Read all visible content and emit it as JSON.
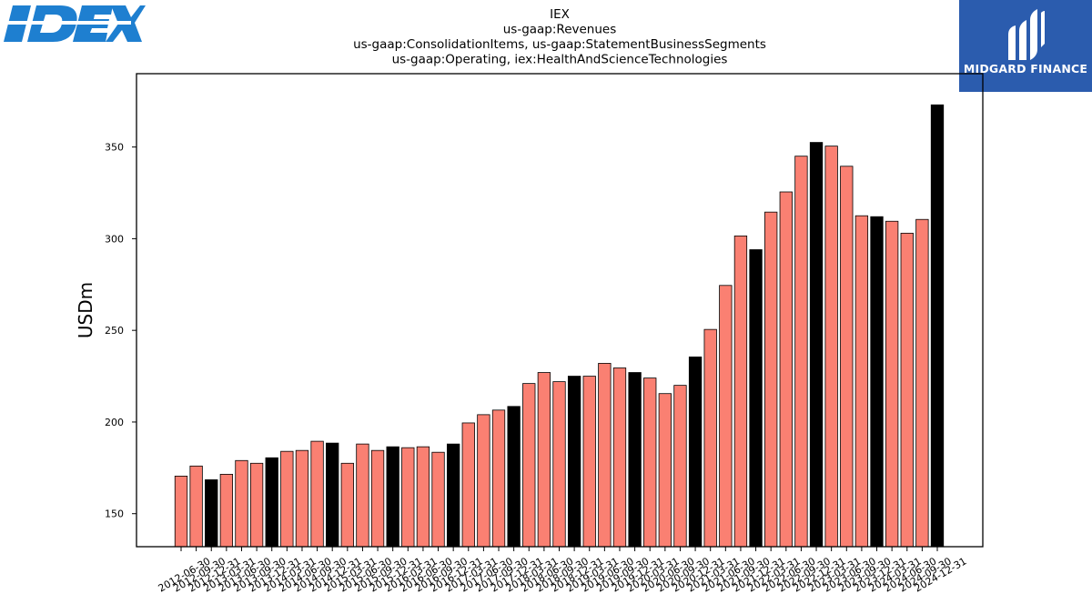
{
  "logos": {
    "left_text": "IDEX",
    "right_text": "MIDGARD FINANCE",
    "left_color": "#1e7fd0",
    "right_bg": "#2b5cae"
  },
  "chart_data": {
    "type": "bar",
    "title_lines": [
      "IEX",
      "us-gaap:Revenues",
      "us-gaap:ConsolidationItems, us-gaap:StatementBusinessSegments",
      "us-gaap:Operating, iex:HealthAndScienceTechnologies"
    ],
    "xlabel": "",
    "ylabel": "USDm",
    "ylim": [
      132,
      390
    ],
    "yticks": [
      150,
      200,
      250,
      300,
      350
    ],
    "bar_color": "#fa8072",
    "highlight_color": "#000000",
    "categories": [
      "2012-06-30",
      "2012-09-30",
      "2012-12-31",
      "2013-03-31",
      "2013-06-30",
      "2013-09-30",
      "2013-12-31",
      "2014-03-31",
      "2014-06-30",
      "2014-09-30",
      "2014-12-31",
      "2015-03-31",
      "2015-06-30",
      "2015-09-30",
      "2015-12-31",
      "2016-03-31",
      "2016-06-30",
      "2016-09-30",
      "2016-12-31",
      "2017-03-31",
      "2017-06-30",
      "2017-09-30",
      "2017-12-31",
      "2018-03-31",
      "2018-06-30",
      "2018-09-30",
      "2018-12-31",
      "2019-03-31",
      "2019-06-30",
      "2019-09-30",
      "2019-12-31",
      "2020-03-31",
      "2020-06-30",
      "2020-09-30",
      "2020-12-31",
      "2021-03-31",
      "2021-06-30",
      "2021-09-30",
      "2021-12-31",
      "2022-03-31",
      "2022-06-30",
      "2022-09-30",
      "2022-12-31",
      "2023-03-31",
      "2023-06-30",
      "2023-09-30",
      "2023-12-31",
      "2024-03-31",
      "2024-06-30",
      "2024-09-30",
      "2024-12-31"
    ],
    "values": [
      170.5,
      176,
      168.5,
      171.5,
      179,
      177.5,
      180.5,
      184,
      184.5,
      189.5,
      188.5,
      177.5,
      188,
      184.5,
      186.5,
      186,
      186.5,
      183.5,
      188,
      199.5,
      204,
      206.5,
      208.5,
      221,
      227,
      222,
      225,
      225,
      232,
      229.5,
      227,
      224,
      215.5,
      220,
      235.5,
      250.5,
      274.5,
      301.5,
      294,
      314.5,
      325.5,
      345,
      352.5,
      350.5,
      339.5,
      312.5,
      312,
      309.5,
      303,
      310.5,
      373
    ],
    "highlighted": [
      false,
      false,
      true,
      false,
      false,
      false,
      true,
      false,
      false,
      false,
      true,
      false,
      false,
      false,
      true,
      false,
      false,
      false,
      true,
      false,
      false,
      false,
      true,
      false,
      false,
      false,
      true,
      false,
      false,
      false,
      true,
      false,
      false,
      false,
      true,
      false,
      false,
      false,
      true,
      false,
      false,
      false,
      true,
      false,
      false,
      false,
      true,
      false,
      false,
      false,
      true
    ],
    "grid": false,
    "legend": "none"
  }
}
